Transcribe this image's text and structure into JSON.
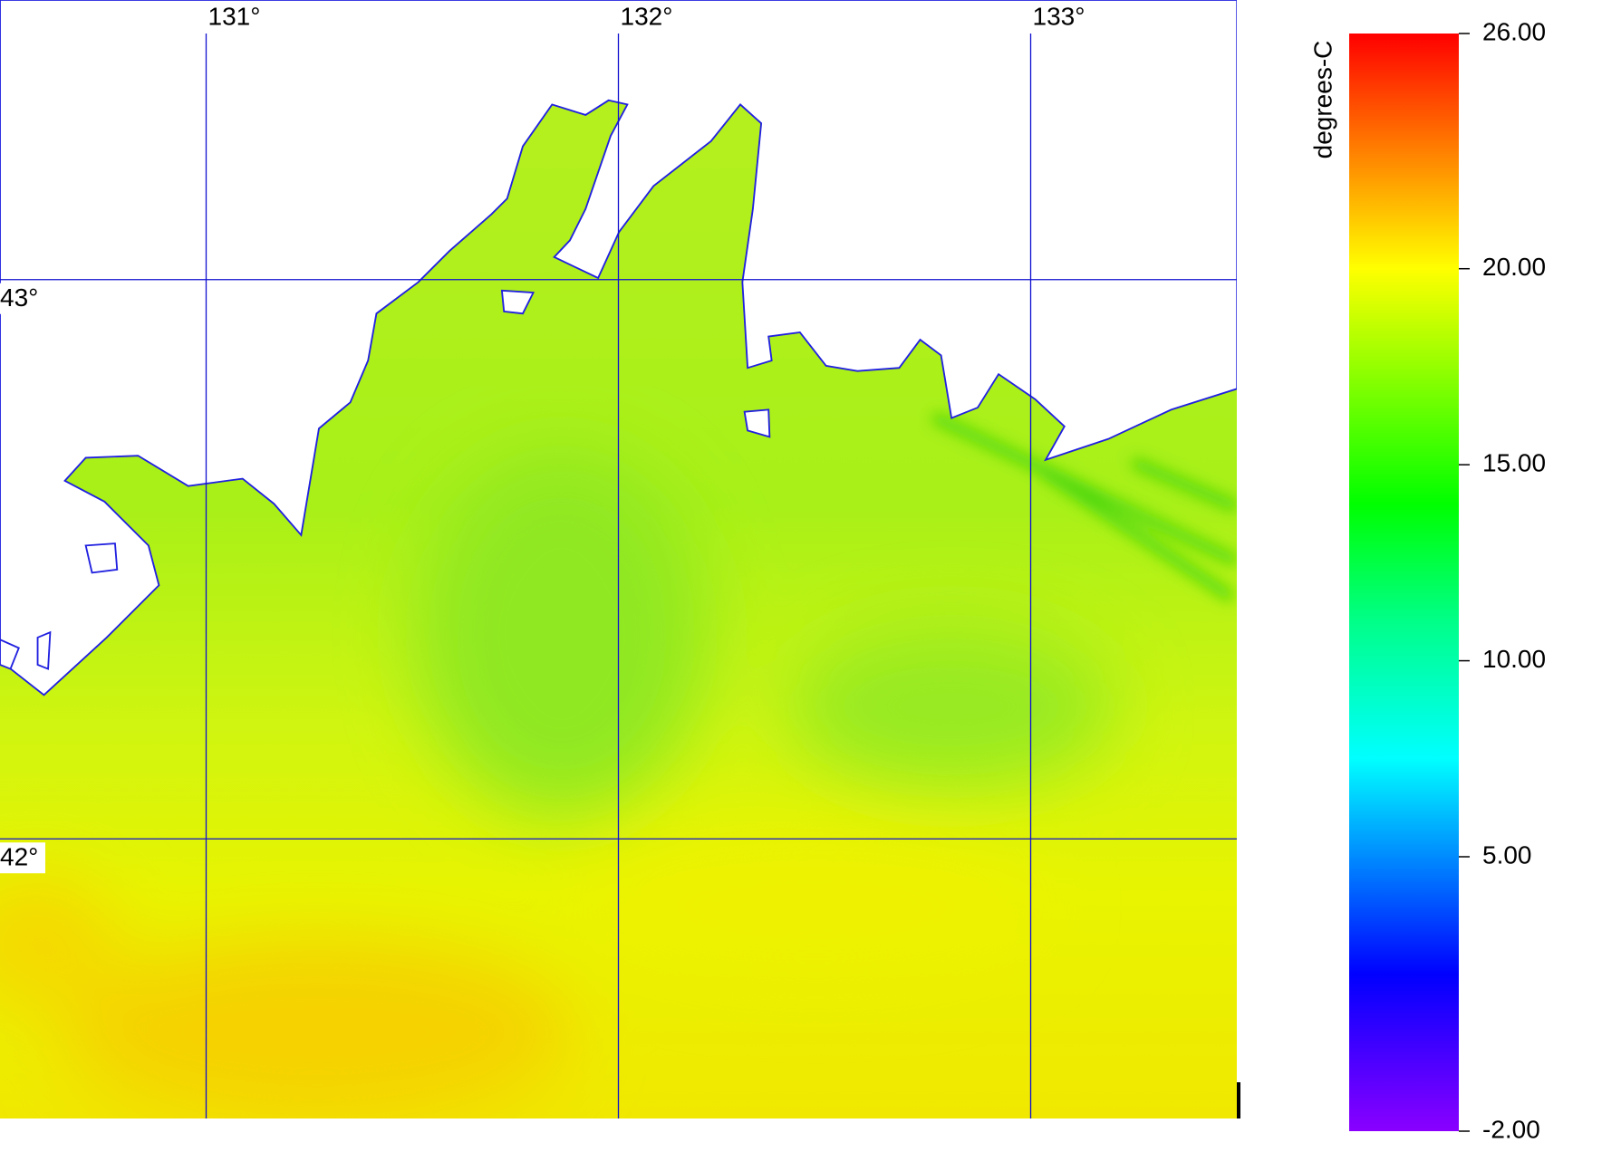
{
  "map": {
    "xlim": [
      130.5,
      133.5
    ],
    "ylim": [
      41.5,
      43.5
    ],
    "lon_ticks": [
      {
        "value": 131,
        "label": "131°"
      },
      {
        "value": 132,
        "label": "132°"
      },
      {
        "value": 133,
        "label": "133°"
      }
    ],
    "lat_ticks": [
      {
        "value": 43,
        "label": "43°"
      },
      {
        "value": 42,
        "label": "42°"
      }
    ]
  },
  "colorbar": {
    "title": "degrees-C",
    "range": [
      -2,
      26
    ],
    "ticks": [
      {
        "value": 26,
        "label": "26.00"
      },
      {
        "value": 20,
        "label": "20.00"
      },
      {
        "value": 15,
        "label": "15.00"
      },
      {
        "value": 10,
        "label": "10.00"
      },
      {
        "value": 5,
        "label": "5.00"
      },
      {
        "value": -2,
        "label": "-2.00"
      }
    ],
    "colormap": [
      {
        "value": -2,
        "color": "#8a00ff"
      },
      {
        "value": 2,
        "color": "#0000ff"
      },
      {
        "value": 7.5,
        "color": "#00ffff"
      },
      {
        "value": 11,
        "color": "#00ff88"
      },
      {
        "value": 14,
        "color": "#00ff00"
      },
      {
        "value": 20,
        "color": "#ffff00"
      },
      {
        "value": 23,
        "color": "#ff8000"
      },
      {
        "value": 26,
        "color": "#ff0000"
      }
    ]
  }
}
